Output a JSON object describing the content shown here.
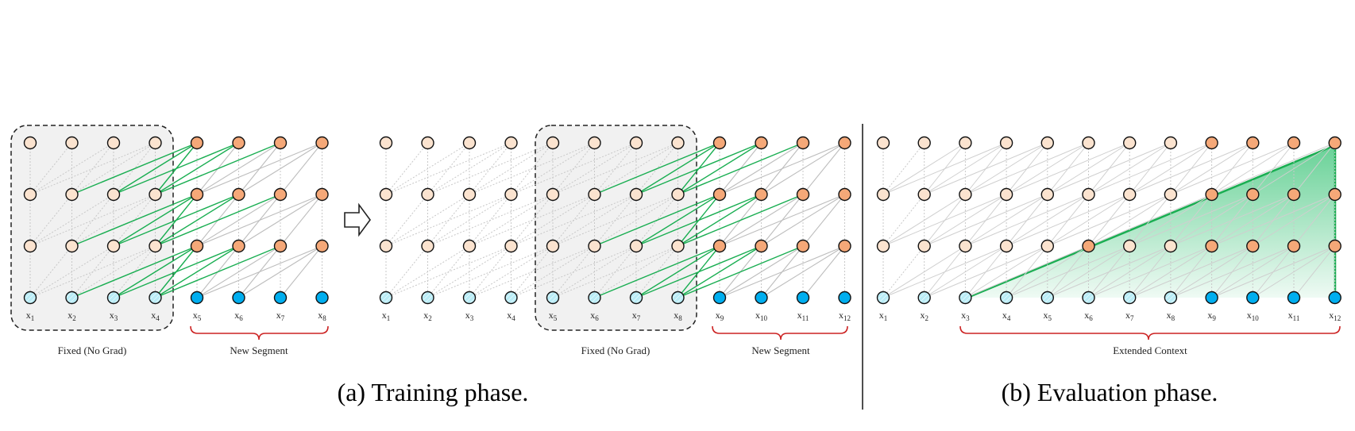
{
  "colors": {
    "node_light": "#fbe3cf",
    "node_dark": "#f5a878",
    "input_light": "#b9ecf6",
    "input_dark": "#00aeef",
    "edge_green": "#1aae52",
    "edge_gray": "#bdbdbd",
    "edge_dotted": "#c8c8c8",
    "brace": "#cc2222",
    "fixed_box_fill": "#f1f1f1"
  },
  "panel_a": {
    "caption": "(a) Training phase.",
    "left_block": {
      "tokens": [
        "x1",
        "x2",
        "x3",
        "x4",
        "x5",
        "x6",
        "x7",
        "x8"
      ],
      "fixed_label": "Fixed (No Grad)",
      "segment_label": "New Segment"
    },
    "arrow_icon": "right-arrow-icon",
    "right_block": {
      "tokens": [
        "x1",
        "x2",
        "x3",
        "x4",
        "x5",
        "x6",
        "x7",
        "x8",
        "x9",
        "x10",
        "x11",
        "x12"
      ],
      "fixed_label": "Fixed (No Grad)",
      "segment_label": "New Segment"
    }
  },
  "panel_b": {
    "caption": "(b) Evaluation phase.",
    "tokens": [
      "x1",
      "x2",
      "x3",
      "x4",
      "x5",
      "x6",
      "x7",
      "x8",
      "x9",
      "x10",
      "x11",
      "x12"
    ],
    "context_label": "Extended Context"
  }
}
